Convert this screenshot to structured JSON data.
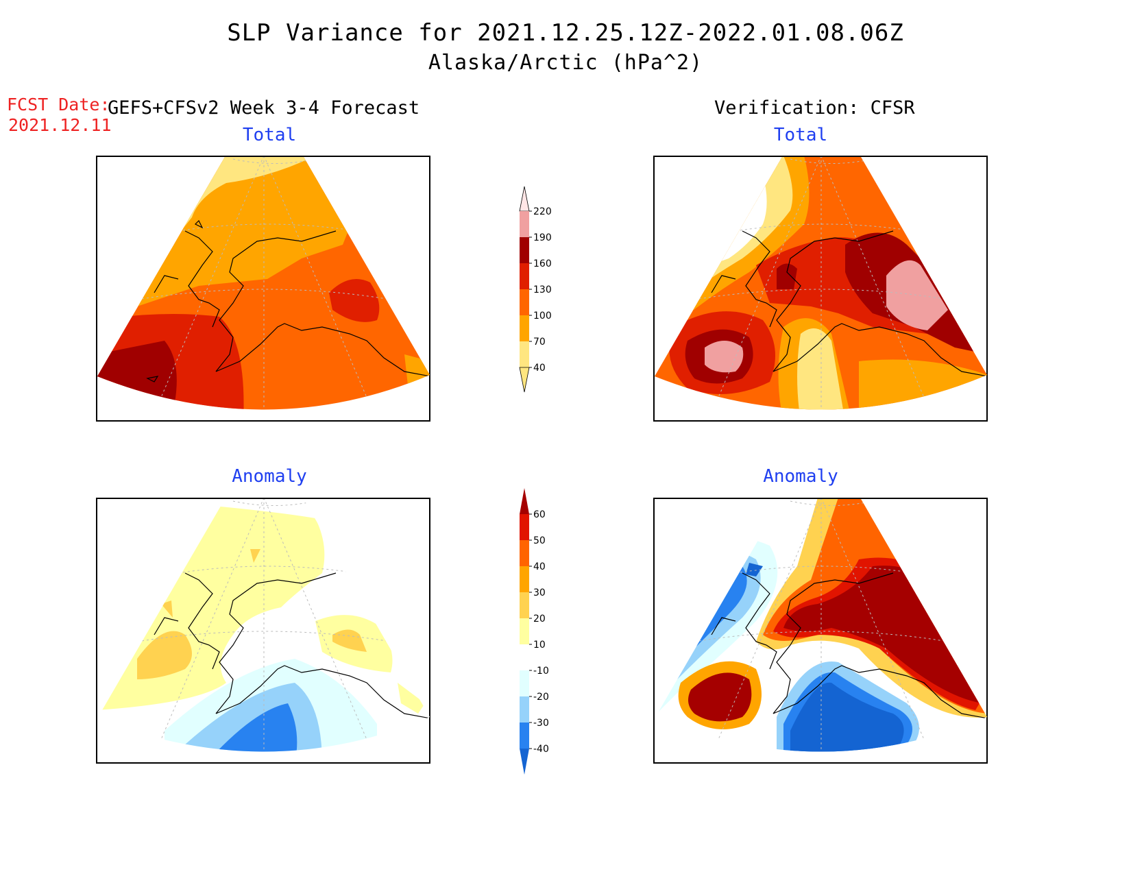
{
  "title": {
    "line1": "SLP Variance for 2021.12.25.12Z-2022.01.08.06Z",
    "line2": "Alaska/Arctic (hPa^2)"
  },
  "forecast_info": {
    "label": "FCST Date:",
    "date": "2021.12.11"
  },
  "columns": {
    "left": "GEFS+CFSv2 Week 3-4 Forecast",
    "right": "Verification: CFSR"
  },
  "panels": {
    "forecast_total": "Total",
    "verification_total": "Total",
    "forecast_anomaly": "Anomaly",
    "verification_anomaly": "Anomaly"
  },
  "colorbars": {
    "total": {
      "labels": [
        "40",
        "70",
        "100",
        "130",
        "160",
        "190",
        "220"
      ],
      "colors": [
        "#ffe680",
        "#ffa500",
        "#ff6600",
        "#e01f00",
        "#a00000",
        "#f0a0a0",
        "#ffe6e6"
      ]
    },
    "anomaly": {
      "labels": [
        "-40",
        "-30",
        "-20",
        "-10",
        "10",
        "20",
        "30",
        "40",
        "50",
        "60"
      ],
      "colors": [
        "#1464d2",
        "#2882f0",
        "#96d2fa",
        "#e1ffff",
        "#ffffff",
        "#ffffa0",
        "#ffd250",
        "#ffa500",
        "#ff6400",
        "#e11400",
        "#a50000"
      ]
    }
  }
}
